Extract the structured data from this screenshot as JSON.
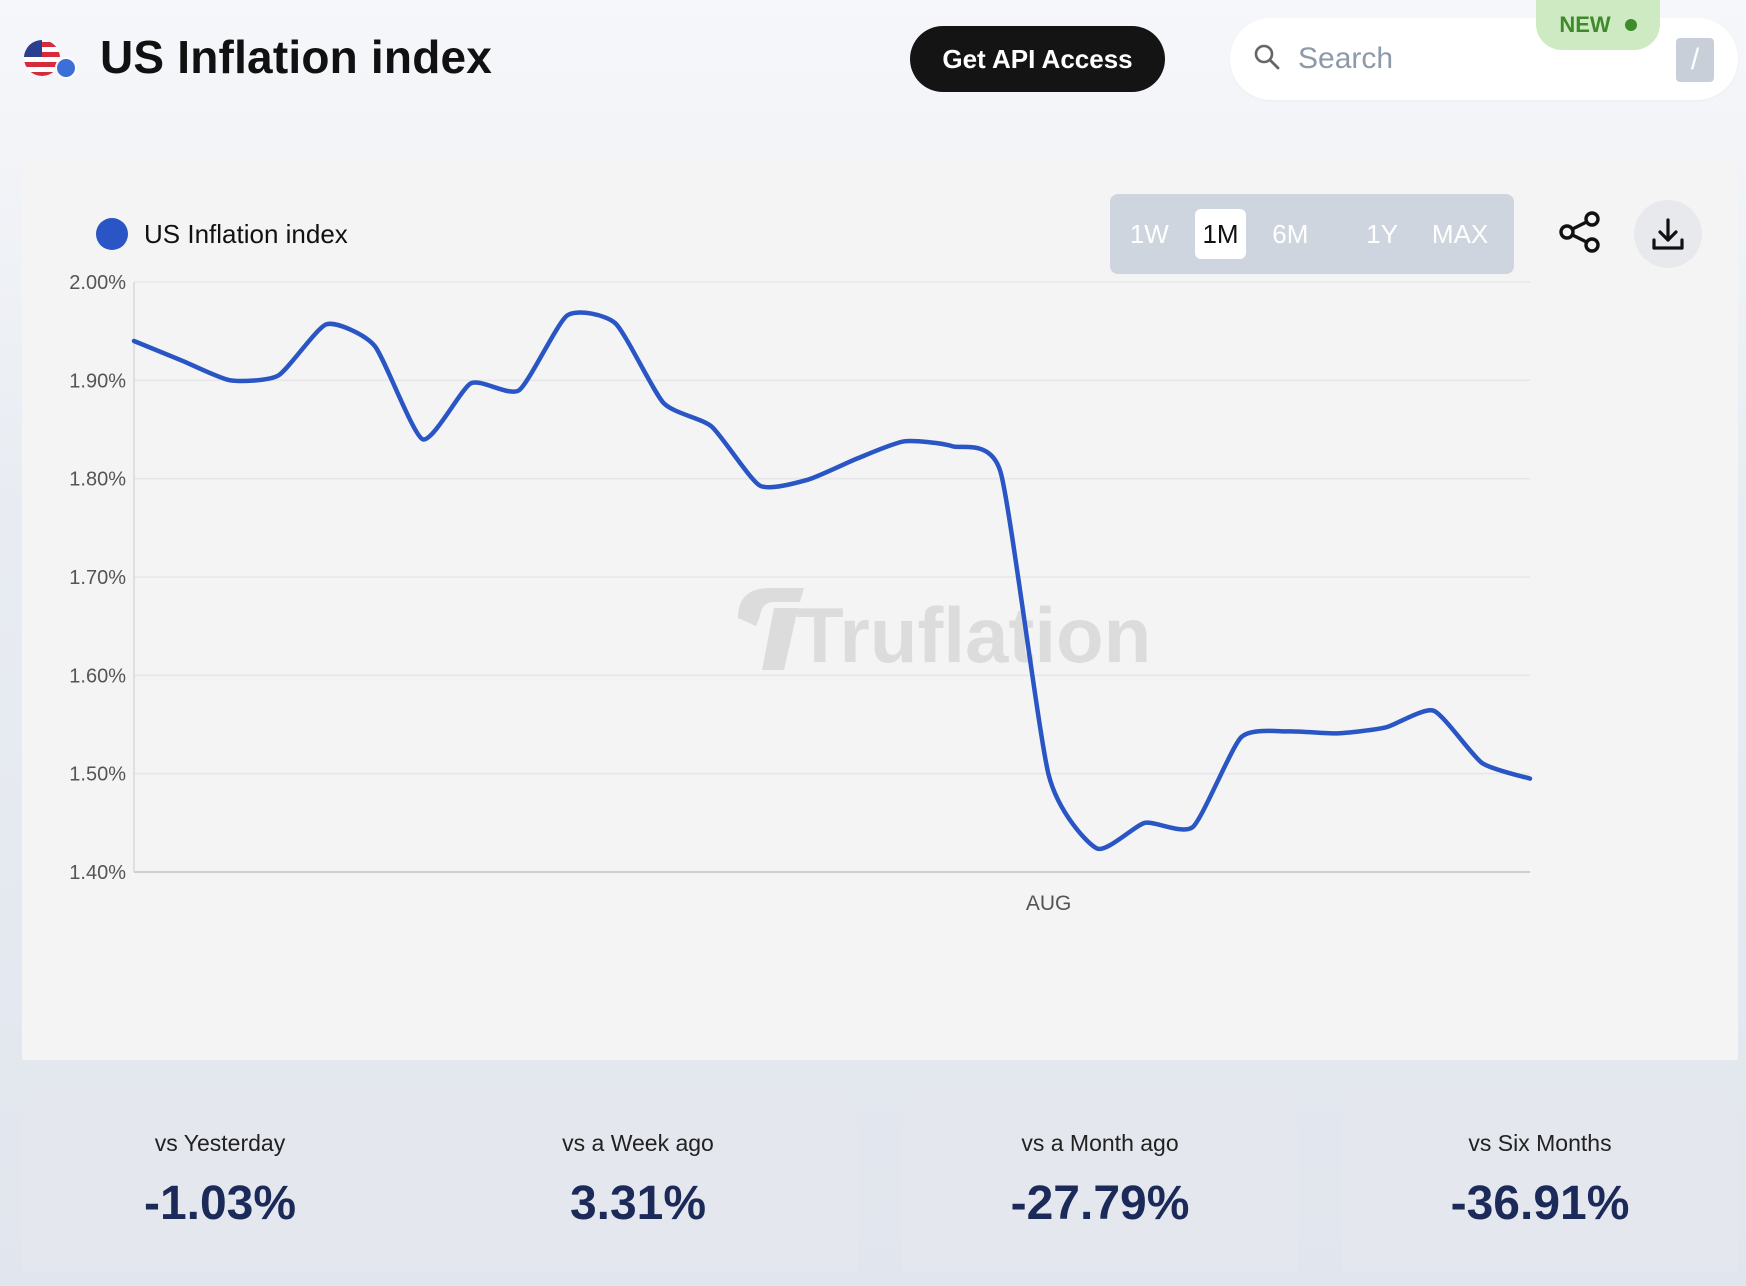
{
  "header": {
    "title": "US Inflation index",
    "api_button": "Get API Access",
    "search_placeholder": "Search",
    "search_shortcut": "/",
    "new_badge": "NEW"
  },
  "legend": {
    "label": "US Inflation index",
    "color": "#2a55c4"
  },
  "ranges": [
    "1W",
    "1M",
    "6M",
    "1Y",
    "MAX"
  ],
  "active_range": "1M",
  "watermark": "Truflation",
  "chart_data": {
    "type": "line",
    "series": [
      {
        "name": "US Inflation index",
        "color": "#2a55c4",
        "values": [
          1.94,
          1.92,
          1.9,
          1.905,
          1.957,
          1.935,
          1.84,
          1.897,
          1.89,
          1.966,
          1.958,
          1.877,
          1.853,
          1.793,
          1.799,
          1.82,
          1.838,
          1.833,
          1.807,
          1.499,
          1.424,
          1.45,
          1.446,
          1.537,
          1.543,
          1.541,
          1.547,
          1.564,
          1.511,
          1.495
        ]
      }
    ],
    "x_tick_labels": [
      {
        "index": 19,
        "label": "AUG"
      }
    ],
    "y_ticks": [
      "2.00%",
      "1.90%",
      "1.80%",
      "1.70%",
      "1.60%",
      "1.50%",
      "1.40%"
    ],
    "ylim": [
      1.4,
      2.0
    ],
    "grid": true
  },
  "stats": [
    {
      "label": "vs Yesterday",
      "value": "-1.03%"
    },
    {
      "label": "vs a Week ago",
      "value": "3.31%"
    },
    {
      "label": "vs a Month ago",
      "value": "-27.79%"
    },
    {
      "label": "vs Six Months",
      "value": "-36.91%"
    }
  ]
}
